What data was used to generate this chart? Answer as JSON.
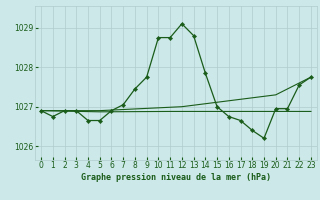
{
  "title": "Graphe pression niveau de la mer (hPa)",
  "background_color": "#cce8e8",
  "grid_color": "#b0cccc",
  "line_color_dark": "#1a5c1a",
  "xlim": [
    -0.5,
    23.5
  ],
  "ylim": [
    1025.65,
    1029.55
  ],
  "yticks": [
    1026,
    1027,
    1028,
    1029
  ],
  "xticks": [
    0,
    1,
    2,
    3,
    4,
    5,
    6,
    7,
    8,
    9,
    10,
    11,
    12,
    13,
    14,
    15,
    16,
    17,
    18,
    19,
    20,
    21,
    22,
    23
  ],
  "series_main_x": [
    0,
    1,
    2,
    3,
    4,
    5,
    6,
    7,
    8,
    9,
    10,
    11,
    12,
    13,
    14,
    15,
    16,
    17,
    18,
    19,
    20,
    21,
    22,
    23
  ],
  "series_main_y": [
    1026.9,
    1026.75,
    1026.9,
    1026.9,
    1026.65,
    1026.65,
    1026.9,
    1027.05,
    1027.45,
    1027.75,
    1028.75,
    1028.75,
    1029.1,
    1028.8,
    1027.85,
    1027.0,
    1026.75,
    1026.65,
    1026.4,
    1026.2,
    1026.95,
    1026.95,
    1027.55,
    1027.75
  ],
  "series_trend1_x": [
    0,
    5,
    12,
    20,
    23
  ],
  "series_trend1_y": [
    1026.9,
    1026.9,
    1027.0,
    1027.3,
    1027.75
  ],
  "series_flat_x": [
    0,
    5,
    11,
    14,
    20,
    23
  ],
  "series_flat_y": [
    1026.9,
    1026.87,
    1026.88,
    1026.88,
    1026.88,
    1026.88
  ]
}
